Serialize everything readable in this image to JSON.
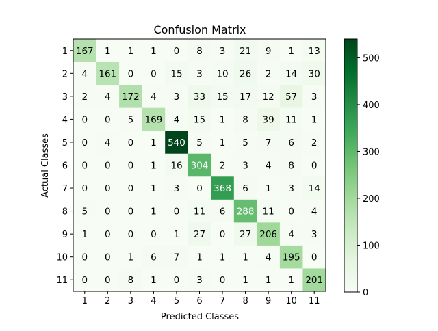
{
  "chart_data": {
    "type": "heatmap",
    "title": "Confusion Matrix",
    "xlabel": "Predicted Classes",
    "ylabel": "Actual Classes",
    "x_categories": [
      "1",
      "2",
      "3",
      "4",
      "5",
      "6",
      "7",
      "8",
      "9",
      "10",
      "11"
    ],
    "y_categories": [
      "1",
      "2",
      "3",
      "4",
      "5",
      "6",
      "7",
      "8",
      "9",
      "10",
      "11"
    ],
    "values": [
      [
        167,
        1,
        1,
        1,
        0,
        8,
        3,
        21,
        9,
        1,
        13
      ],
      [
        4,
        161,
        0,
        0,
        15,
        3,
        10,
        26,
        2,
        14,
        30
      ],
      [
        2,
        4,
        172,
        4,
        3,
        33,
        15,
        17,
        12,
        57,
        3
      ],
      [
        0,
        0,
        5,
        169,
        4,
        15,
        1,
        8,
        39,
        11,
        1
      ],
      [
        0,
        4,
        0,
        1,
        540,
        5,
        1,
        5,
        7,
        6,
        2
      ],
      [
        0,
        0,
        0,
        1,
        16,
        304,
        2,
        3,
        4,
        8,
        0
      ],
      [
        0,
        0,
        0,
        1,
        3,
        0,
        368,
        6,
        1,
        3,
        14
      ],
      [
        5,
        0,
        0,
        1,
        0,
        11,
        6,
        288,
        11,
        0,
        4
      ],
      [
        1,
        0,
        0,
        0,
        1,
        27,
        0,
        27,
        206,
        4,
        3
      ],
      [
        0,
        0,
        1,
        6,
        7,
        1,
        1,
        1,
        4,
        195,
        0
      ],
      [
        0,
        0,
        8,
        1,
        0,
        3,
        0,
        1,
        1,
        1,
        201
      ]
    ],
    "colormap": "Greens",
    "color_min": 0,
    "color_max": 540,
    "colorbar_ticks": [
      0,
      100,
      200,
      300,
      400,
      500
    ],
    "grid": false
  }
}
